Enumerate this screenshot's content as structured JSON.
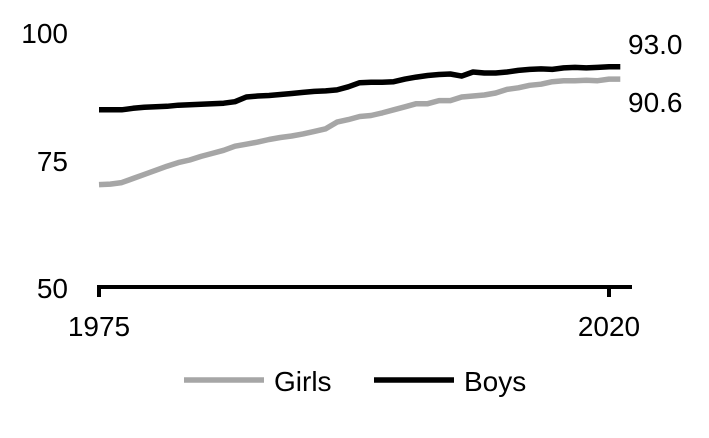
{
  "chart_data": {
    "type": "line",
    "x": [
      1975,
      1976,
      1977,
      1978,
      1979,
      1980,
      1981,
      1982,
      1983,
      1984,
      1985,
      1986,
      1987,
      1988,
      1989,
      1990,
      1991,
      1992,
      1993,
      1994,
      1995,
      1996,
      1997,
      1998,
      1999,
      2000,
      2001,
      2002,
      2003,
      2004,
      2005,
      2006,
      2007,
      2008,
      2009,
      2010,
      2011,
      2012,
      2013,
      2014,
      2015,
      2016,
      2017,
      2018,
      2019,
      2020,
      2021
    ],
    "series": [
      {
        "name": "Girls",
        "color": "#a6a6a6",
        "values": [
          70.0,
          70.1,
          70.4,
          71.2,
          72.0,
          72.8,
          73.6,
          74.3,
          74.8,
          75.5,
          76.1,
          76.7,
          77.5,
          77.9,
          78.3,
          78.8,
          79.2,
          79.5,
          79.9,
          80.4,
          80.9,
          82.2,
          82.7,
          83.3,
          83.5,
          84.0,
          84.6,
          85.2,
          85.8,
          85.8,
          86.4,
          86.4,
          87.1,
          87.3,
          87.5,
          87.9,
          88.6,
          88.9,
          89.4,
          89.6,
          90.1,
          90.3,
          90.3,
          90.4,
          90.3,
          90.6,
          90.6
        ]
      },
      {
        "name": "Boys",
        "color": "#000000",
        "values": [
          84.6,
          84.6,
          84.6,
          84.9,
          85.1,
          85.2,
          85.3,
          85.5,
          85.6,
          85.7,
          85.8,
          85.9,
          86.2,
          87.1,
          87.3,
          87.4,
          87.6,
          87.8,
          88.0,
          88.2,
          88.3,
          88.5,
          89.1,
          89.9,
          90.0,
          90.0,
          90.1,
          90.6,
          91.0,
          91.3,
          91.5,
          91.6,
          91.2,
          92.0,
          91.8,
          91.8,
          92.0,
          92.3,
          92.5,
          92.6,
          92.5,
          92.8,
          92.9,
          92.8,
          92.9,
          93.0,
          93.0
        ]
      }
    ],
    "end_labels": [
      "90.6",
      "93.0"
    ],
    "xticks": [
      "1975",
      "2020"
    ],
    "yticks": [
      "50",
      "75",
      "100"
    ],
    "xlim": [
      1975,
      2021
    ],
    "ylim": [
      50,
      100
    ],
    "grid": false,
    "legend_position": "bottom",
    "title": "",
    "xlabel": "",
    "ylabel": ""
  }
}
